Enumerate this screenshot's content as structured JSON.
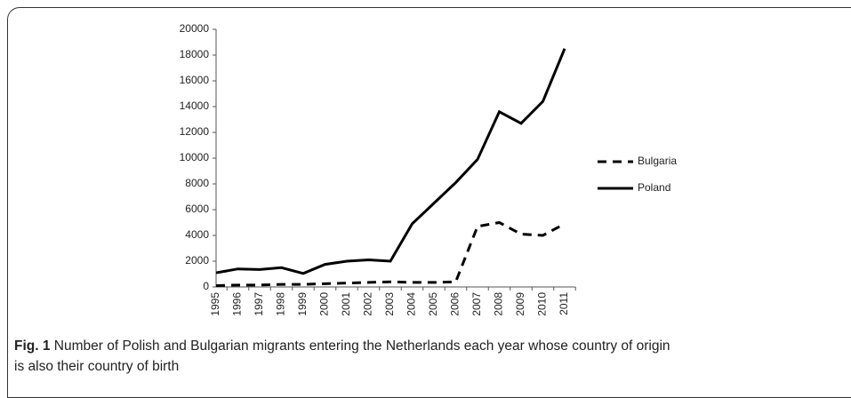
{
  "chart_data": {
    "type": "line",
    "categories": [
      "1995",
      "1996",
      "1997",
      "1998",
      "1999",
      "2000",
      "2001",
      "2002",
      "2003",
      "2004",
      "2005",
      "2006",
      "2007",
      "2008",
      "2009",
      "2010",
      "2011"
    ],
    "series": [
      {
        "name": "Bulgaria",
        "color": "#000000",
        "dash": true,
        "values": [
          100,
          150,
          150,
          200,
          200,
          250,
          300,
          350,
          400,
          350,
          350,
          400,
          4700,
          5000,
          4100,
          4000,
          4900
        ]
      },
      {
        "name": "Poland",
        "color": "#000000",
        "dash": false,
        "values": [
          1100,
          1400,
          1350,
          1500,
          1050,
          1750,
          2000,
          2100,
          2000,
          4900,
          6500,
          8100,
          9900,
          13600,
          12700,
          14400,
          18500
        ]
      }
    ],
    "ylim": [
      0,
      20000
    ],
    "yticks": [
      0,
      2000,
      4000,
      6000,
      8000,
      10000,
      12000,
      14000,
      16000,
      18000,
      20000
    ],
    "legend": "right"
  },
  "caption": {
    "label": "Fig. 1",
    "text": "Number of Polish and Bulgarian migrants entering the Netherlands each year whose country of origin is also their country of birth"
  }
}
